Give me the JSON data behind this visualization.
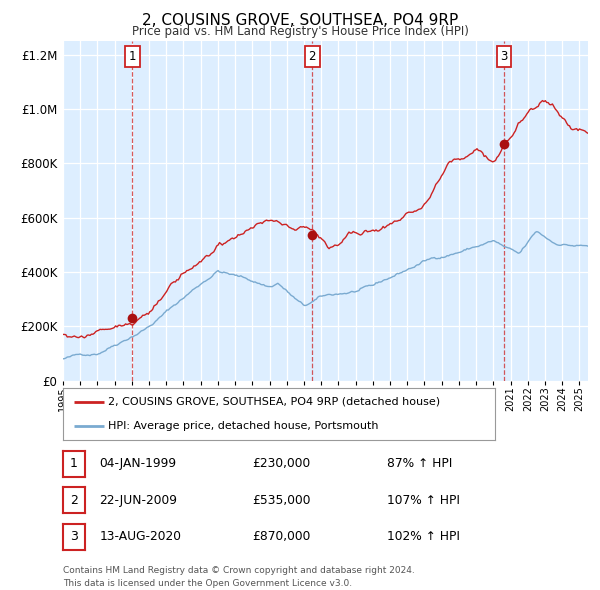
{
  "title": "2, COUSINS GROVE, SOUTHSEA, PO4 9RP",
  "subtitle": "Price paid vs. HM Land Registry's House Price Index (HPI)",
  "legend_line1": "2, COUSINS GROVE, SOUTHSEA, PO4 9RP (detached house)",
  "legend_line2": "HPI: Average price, detached house, Portsmouth",
  "footer1": "Contains HM Land Registry data © Crown copyright and database right 2024.",
  "footer2": "This data is licensed under the Open Government Licence v3.0.",
  "hpi_color": "#7aaad0",
  "price_color": "#cc2222",
  "dot_color": "#aa1111",
  "plot_bg": "#ddeeff",
  "xmin": 1995.0,
  "xmax": 2025.5,
  "ymin": 0,
  "ymax": 1250000,
  "sale_events": [
    {
      "num": 1,
      "year_x": 1999.02,
      "date": "04-JAN-1999",
      "price": 230000,
      "pct": "87%",
      "direction": "↑",
      "label": "HPI"
    },
    {
      "num": 2,
      "year_x": 2009.47,
      "date": "22-JUN-2009",
      "price": 535000,
      "pct": "107%",
      "direction": "↑",
      "label": "HPI"
    },
    {
      "num": 3,
      "year_x": 2020.62,
      "date": "13-AUG-2020",
      "price": 870000,
      "pct": "102%",
      "direction": "↑",
      "label": "HPI"
    }
  ],
  "xtick_years": [
    1995,
    1996,
    1997,
    1998,
    1999,
    2000,
    2001,
    2002,
    2003,
    2004,
    2005,
    2006,
    2007,
    2008,
    2009,
    2010,
    2011,
    2012,
    2013,
    2014,
    2015,
    2016,
    2017,
    2018,
    2019,
    2020,
    2021,
    2022,
    2023,
    2024,
    2025
  ],
  "yticks": [
    0,
    200000,
    400000,
    600000,
    800000,
    1000000,
    1200000
  ]
}
